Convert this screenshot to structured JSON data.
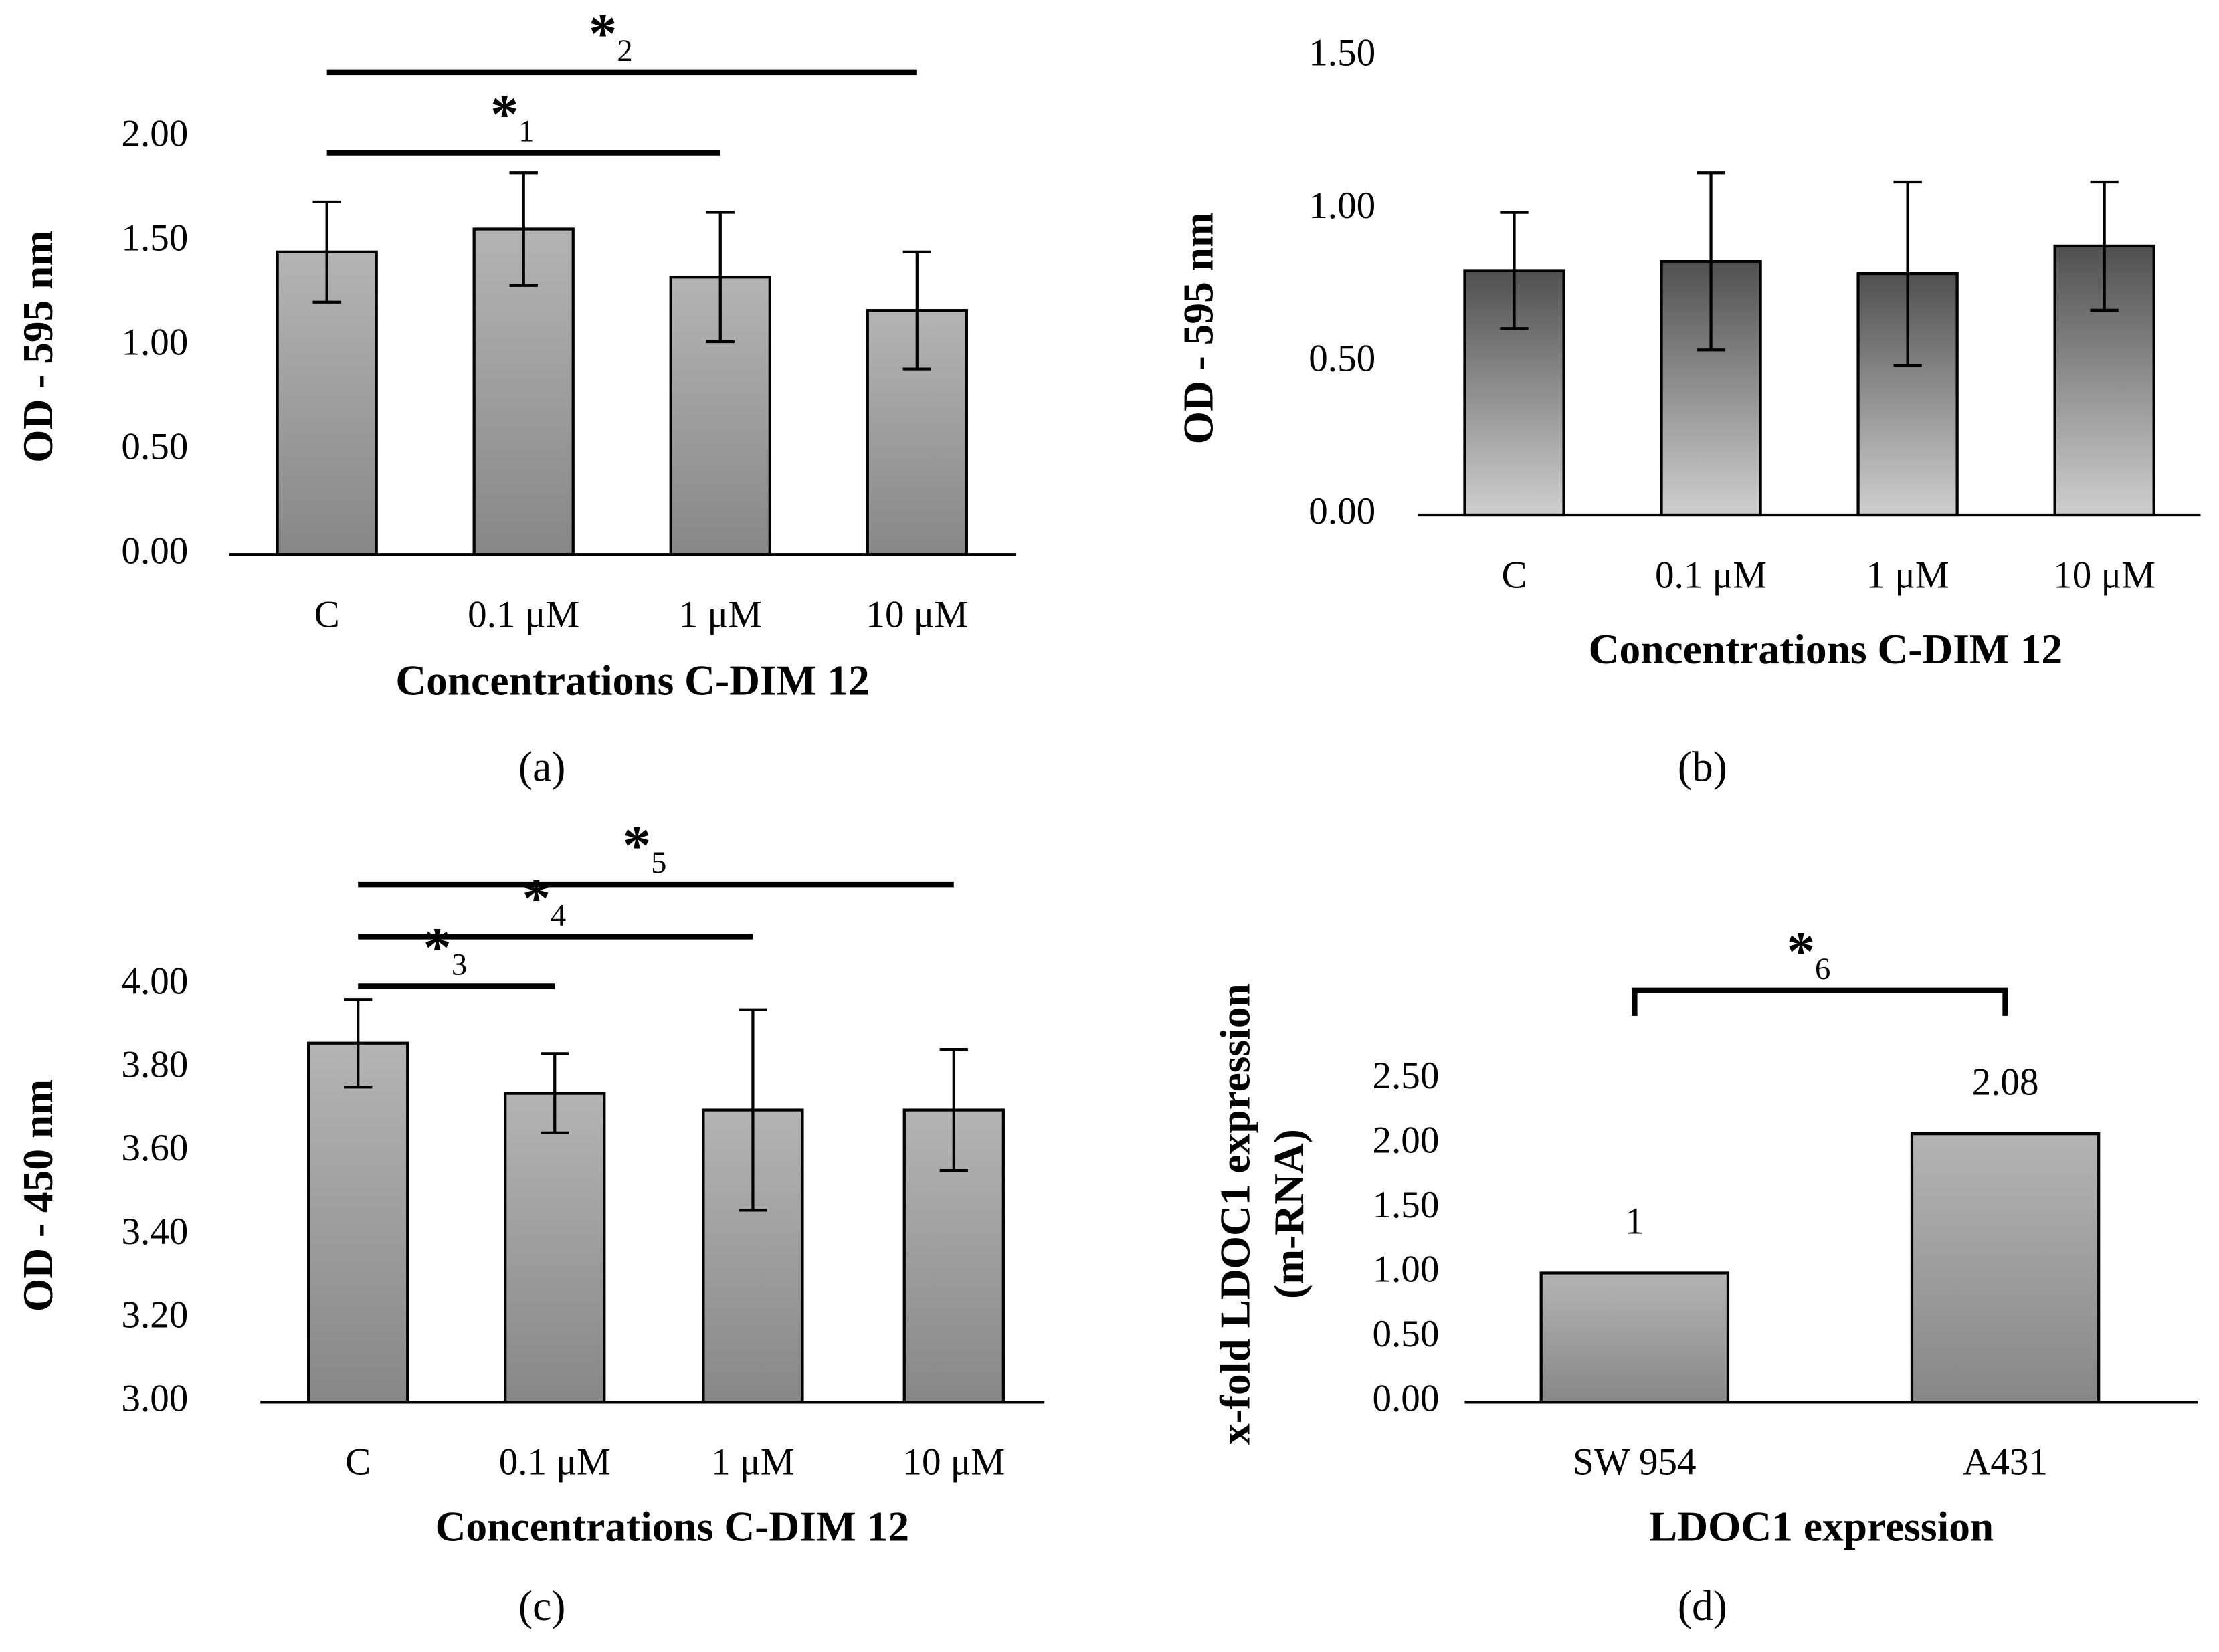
{
  "chart_data": [
    {
      "type": "bar",
      "caption": "(a)",
      "ylabel": "OD - 595 nm",
      "xlabel": "Concentrations C-DIM 12",
      "categories": [
        "C",
        "0.1 μM",
        "1 μM",
        "10 μM"
      ],
      "values": [
        1.45,
        1.56,
        1.33,
        1.17
      ],
      "errors": [
        0.24,
        0.27,
        0.31,
        0.28
      ],
      "color": [
        "#b4b4b4",
        "#878787"
      ],
      "ylim": [
        0,
        2
      ],
      "yticks": [
        {
          "value": 0,
          "label": "0.00"
        },
        {
          "value": 0.5,
          "label": "0.50"
        },
        {
          "value": 1,
          "label": "1.00"
        },
        {
          "value": 1.5,
          "label": "1.50"
        },
        {
          "value": 2,
          "label": "2.00"
        }
      ],
      "annotations": [
        {
          "text": "*",
          "sub": "1",
          "from": "C",
          "to": "1 μM"
        },
        {
          "text": "*",
          "sub": "2",
          "from": "C",
          "to": "10 μM"
        }
      ]
    },
    {
      "type": "bar",
      "caption": "(b)",
      "ylabel": "OD - 595 nm",
      "xlabel": "Concentrations C-DIM 12",
      "categories": [
        "C",
        "0.1 μM",
        "1 μM",
        "10 μM"
      ],
      "values": [
        0.8,
        0.83,
        0.79,
        0.88
      ],
      "errors": [
        0.19,
        0.29,
        0.3,
        0.21
      ],
      "color": [
        "#505050",
        "#cfcfcf"
      ],
      "ylim": [
        0,
        1.5
      ],
      "yticks": [
        {
          "value": 0,
          "label": "0.00"
        },
        {
          "value": 0.5,
          "label": "0.50"
        },
        {
          "value": 1,
          "label": "1.00"
        },
        {
          "value": 1.5,
          "label": "1.50"
        }
      ]
    },
    {
      "type": "bar",
      "caption": "(c)",
      "ylabel": "OD - 450 nm",
      "xlabel": "Concentrations C-DIM 12",
      "categories": [
        "C",
        "0.1 μM",
        "1 μM",
        "10 μM"
      ],
      "values": [
        3.86,
        3.74,
        3.7,
        3.7
      ],
      "errors": [
        0.105,
        0.095,
        0.24,
        0.145
      ],
      "color": [
        "#b4b4b4",
        "#878787"
      ],
      "ylim": [
        3,
        4
      ],
      "yticks": [
        {
          "value": 3,
          "label": "3.00"
        },
        {
          "value": 3.2,
          "label": "3.20"
        },
        {
          "value": 3.4,
          "label": "3.40"
        },
        {
          "value": 3.6,
          "label": "3.60"
        },
        {
          "value": 3.8,
          "label": "3.80"
        },
        {
          "value": 4,
          "label": "4.00"
        }
      ],
      "annotations": [
        {
          "text": "*",
          "sub": "3",
          "from": "C",
          "to": "0.1 μM"
        },
        {
          "text": "*",
          "sub": "4",
          "from": "C",
          "to": "1 μM"
        },
        {
          "text": "*",
          "sub": "5",
          "from": "C",
          "to": "10 μM"
        }
      ]
    },
    {
      "type": "bar",
      "caption": "(d)",
      "ylabel": [
        "x-fold LDOC1 expression",
        "(m-RNA)"
      ],
      "xlabel": "LDOC1 expression",
      "categories": [
        "SW 954",
        "A431"
      ],
      "values": [
        1,
        2.08
      ],
      "show_values": true,
      "color": [
        "#b4b4b4",
        "#878787"
      ],
      "ylim": [
        0,
        2.5
      ],
      "yticks": [
        {
          "value": 0,
          "label": "0.00"
        },
        {
          "value": 0.5,
          "label": "0.50"
        },
        {
          "value": 1,
          "label": "1.00"
        },
        {
          "value": 1.5,
          "label": "1.50"
        },
        {
          "value": 2,
          "label": "2.00"
        },
        {
          "value": 2.5,
          "label": "2.50"
        }
      ],
      "annotations": [
        {
          "text": "*",
          "sub": "6",
          "from": "SW 954",
          "to": "A431",
          "bracket": true
        }
      ]
    }
  ]
}
